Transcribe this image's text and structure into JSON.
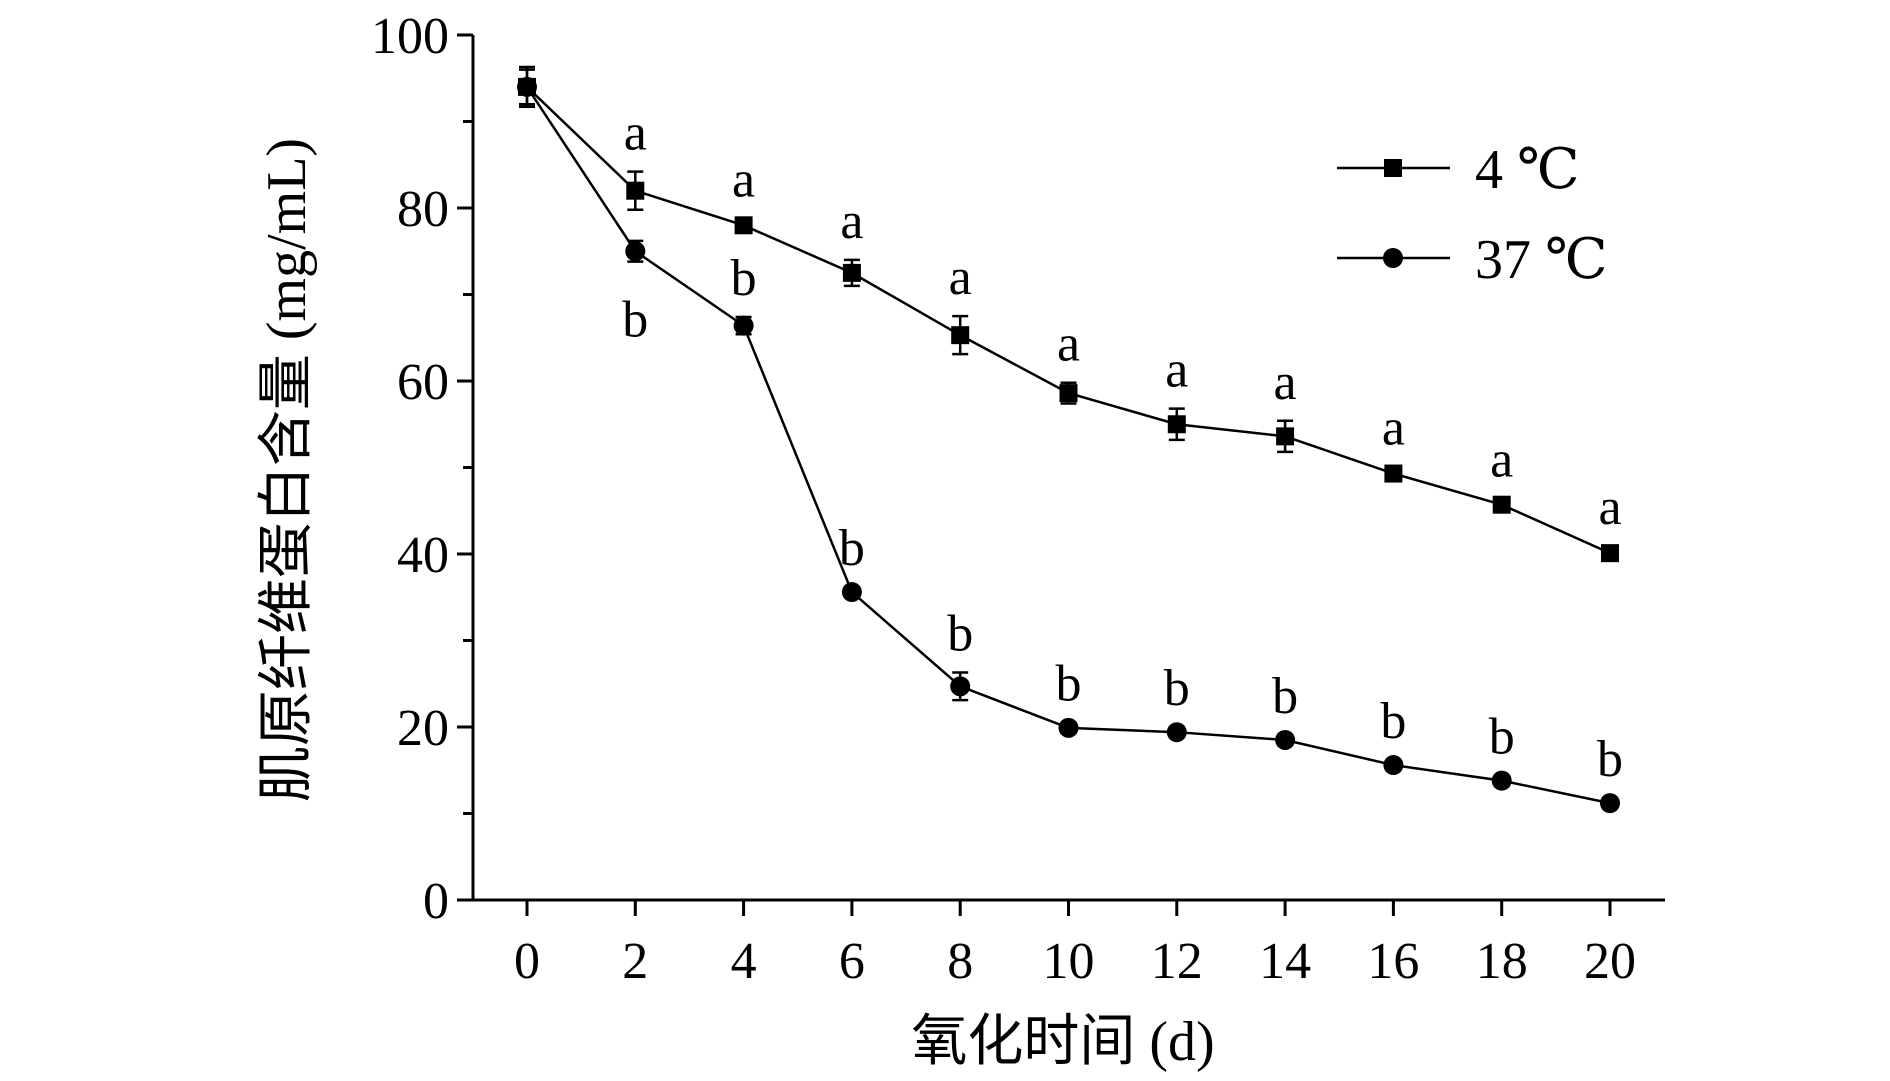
{
  "chart_data": {
    "type": "line",
    "xlabel": "氧化时间 (d)",
    "ylabel": "肌原纤维蛋白含量 (mg/mL)",
    "xlim": [
      0,
      20
    ],
    "ylim": [
      0,
      100
    ],
    "x_ticks": [
      0,
      2,
      4,
      6,
      8,
      10,
      12,
      14,
      16,
      18,
      20
    ],
    "y_ticks": [
      0,
      20,
      40,
      60,
      80,
      100
    ],
    "grid": false,
    "legend_position": "top-right",
    "x": [
      0,
      2,
      4,
      6,
      8,
      10,
      12,
      14,
      16,
      18,
      20
    ],
    "series": [
      {
        "name": "4 ℃",
        "marker": "square",
        "values": [
          94,
          82,
          78,
          72.5,
          65.3,
          58.6,
          55,
          53.6,
          49.3,
          45.7,
          40.1
        ],
        "errors": [
          2.3,
          2.2,
          0.8,
          1.5,
          2.2,
          1.2,
          1.8,
          1.8,
          0.8,
          0.7,
          0.8
        ],
        "labels": [
          "",
          "a",
          "a",
          "a",
          "a",
          "a",
          "a",
          "a",
          "a",
          "a",
          "a"
        ]
      },
      {
        "name": "37 ℃",
        "marker": "circle",
        "values": [
          94,
          75,
          66.4,
          35.6,
          24.7,
          19.9,
          19.4,
          18.5,
          15.6,
          13.8,
          11.2
        ],
        "errors": [
          2.0,
          1.2,
          1.0,
          0.6,
          1.6,
          0.6,
          0.6,
          0.6,
          0.6,
          0.6,
          0.6
        ],
        "labels": [
          "",
          "b",
          "b",
          "b",
          "b",
          "b",
          "b",
          "b",
          "b",
          "b",
          "b"
        ]
      }
    ]
  }
}
